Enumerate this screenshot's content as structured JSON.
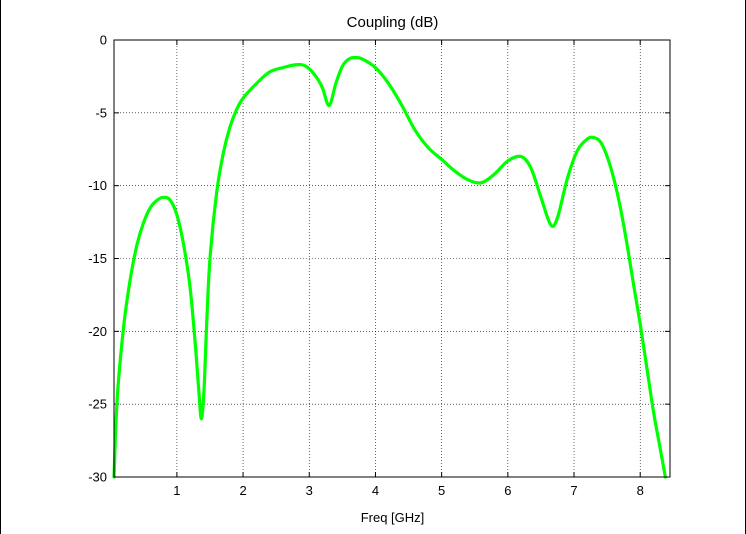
{
  "chart_data": {
    "type": "line",
    "title": "Coupling (dB)",
    "xlabel": "Freq [GHz]",
    "ylabel": "",
    "xlim": [
      0.05,
      8.45
    ],
    "ylim": [
      -30,
      0
    ],
    "xticks": [
      1,
      2,
      3,
      4,
      5,
      6,
      7,
      8
    ],
    "yticks": [
      0,
      -5,
      -10,
      -15,
      -20,
      -25,
      -30
    ],
    "grid": true,
    "line_color": "#00ff00",
    "series": [
      {
        "x": [
          0.05,
          0.1,
          0.2,
          0.3,
          0.4,
          0.5,
          0.6,
          0.7,
          0.8,
          0.9,
          1.0,
          1.1,
          1.2,
          1.28,
          1.33,
          1.37,
          1.41,
          1.45,
          1.5,
          1.6,
          1.7,
          1.8,
          1.9,
          2.0,
          2.2,
          2.4,
          2.6,
          2.8,
          2.95,
          3.1,
          3.2,
          3.3,
          3.4,
          3.5,
          3.6,
          3.7,
          3.8,
          4.0,
          4.2,
          4.4,
          4.6,
          4.8,
          5.0,
          5.2,
          5.4,
          5.6,
          5.8,
          6.0,
          6.2,
          6.35,
          6.5,
          6.65,
          6.75,
          6.9,
          7.05,
          7.2,
          7.3,
          7.4,
          7.5,
          7.6,
          7.7,
          7.8,
          7.9,
          8.0,
          8.1,
          8.2,
          8.3,
          8.38
        ],
        "y": [
          -30,
          -24.5,
          -19.5,
          -16.3,
          -14,
          -12.5,
          -11.5,
          -11,
          -10.8,
          -11,
          -12,
          -14,
          -17,
          -21,
          -24,
          -26,
          -24,
          -19.5,
          -15,
          -10.5,
          -7.8,
          -6,
          -4.8,
          -4,
          -3,
          -2.2,
          -1.9,
          -1.7,
          -1.8,
          -2.5,
          -3.3,
          -4.5,
          -3,
          -1.8,
          -1.3,
          -1.2,
          -1.3,
          -1.9,
          -3,
          -4.5,
          -6.2,
          -7.4,
          -8.2,
          -9.0,
          -9.6,
          -9.8,
          -9.2,
          -8.3,
          -8.0,
          -8.8,
          -10.8,
          -12.7,
          -12.2,
          -9.5,
          -7.6,
          -6.8,
          -6.7,
          -7.0,
          -8.0,
          -9.5,
          -11.5,
          -14,
          -16.8,
          -19.5,
          -22.5,
          -25.5,
          -28,
          -30
        ]
      }
    ]
  }
}
